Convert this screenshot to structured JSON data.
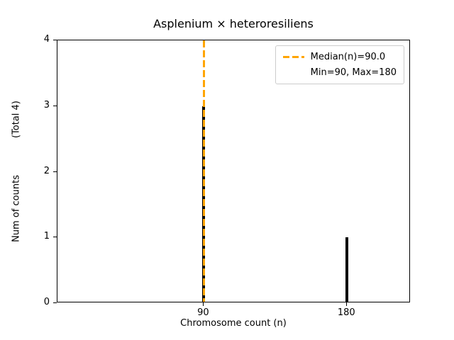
{
  "figure": {
    "title": "Asplenium × heteroresiliens",
    "xlabel": "Chromosome count (n)",
    "ylabel": "Num of counts",
    "ylabel_note": "(Total 4)"
  },
  "legend": {
    "entries": [
      {
        "label": "Median(n)=90.0",
        "has_line": true
      },
      {
        "label": "Min=90, Max=180",
        "has_line": false
      }
    ],
    "line_color": "#ffa500",
    "position": "upper right"
  },
  "chart_data": {
    "type": "bar",
    "title": "Asplenium × heteroresiliens",
    "xlabel": "Chromosome count (n)",
    "ylabel": "Num of counts (Total 4)",
    "x": [
      90,
      180
    ],
    "values": [
      3,
      1
    ],
    "total_counts": 4,
    "bar_color": "#000000",
    "median_line": {
      "x": 90,
      "value": 90.0,
      "color": "#ffa500",
      "style": "dashed",
      "label": "Median(n)=90.0"
    },
    "min": 90,
    "max": 180,
    "annotations": [
      "Min=90, Max=180"
    ],
    "xlim": [
      -2,
      220
    ],
    "ylim": [
      0,
      4
    ],
    "xticks": [
      90,
      180
    ],
    "yticks": [
      0,
      1,
      2,
      3,
      4
    ],
    "grid": false,
    "legend_position": "upper right"
  }
}
